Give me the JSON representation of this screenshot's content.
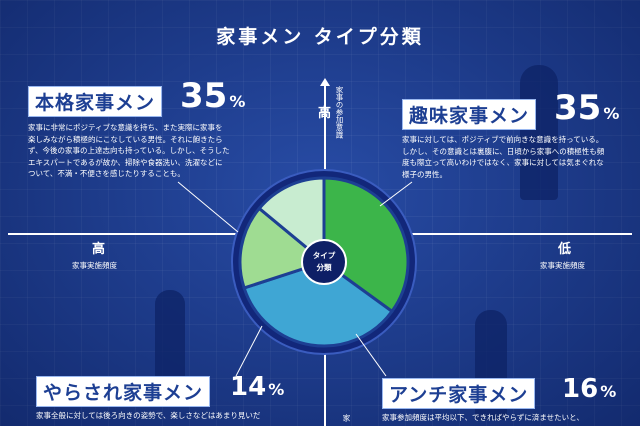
{
  "title": "家事メン タイプ分類",
  "center_label": [
    "タイプ",
    "分類"
  ],
  "axes": {
    "top": "高",
    "top_sub": "家事の参加意識",
    "left": "高",
    "left_sub": "家事実施頻度",
    "right": "低",
    "right_sub": "家事実施頻度",
    "bottom_sub": "家"
  },
  "types": [
    {
      "name": "本格家事メン",
      "pct": "35",
      "unit": "%",
      "desc": [
        "家事に非常にポジティブな意識を持ち、また実際に家事を",
        "楽しみながら積極的にこなしている男性。それに飽きたら",
        "ず、今後の家事の上達志向も持っている。しかし、そうした",
        "エキスパートであるが故か、掃除や食器洗い、洗濯などに",
        "ついて、不満・不便さを感じたりすることも。"
      ]
    },
    {
      "name": "趣味家事メン",
      "pct": "35",
      "unit": "%",
      "desc": [
        "家事に対しては、ポジティブで前向きな意識を持っている。",
        "しかし、その意識とは裏腹に、日頃から家事への積極性も頻",
        "度も際立って高いわけではなく、家事に対しては気まぐれな",
        "様子の男性。"
      ]
    },
    {
      "name": "やらされ家事メン",
      "pct": "14",
      "unit": "%",
      "desc": [
        "家事全般に対しては後ろ向きの姿勢で、楽しさなどはあまり見いだ"
      ]
    },
    {
      "name": "アンチ家事メン",
      "pct": "16",
      "unit": "%",
      "desc": [
        "家事参加頻度は平均以下、できればやらずに済ませたいと、"
      ]
    }
  ],
  "chart_data": {
    "type": "pie",
    "slices": [
      {
        "label": "本格家事メン",
        "value": 35,
        "color": "#3cb54a"
      },
      {
        "label": "趣味家事メン",
        "value": 35,
        "color": "#3fa6d4"
      },
      {
        "label": "アンチ家事メン",
        "value": 16,
        "color": "#9fdc92"
      },
      {
        "label": "やらされ家事メン",
        "value": 14,
        "color": "#c8ecd0"
      }
    ]
  }
}
